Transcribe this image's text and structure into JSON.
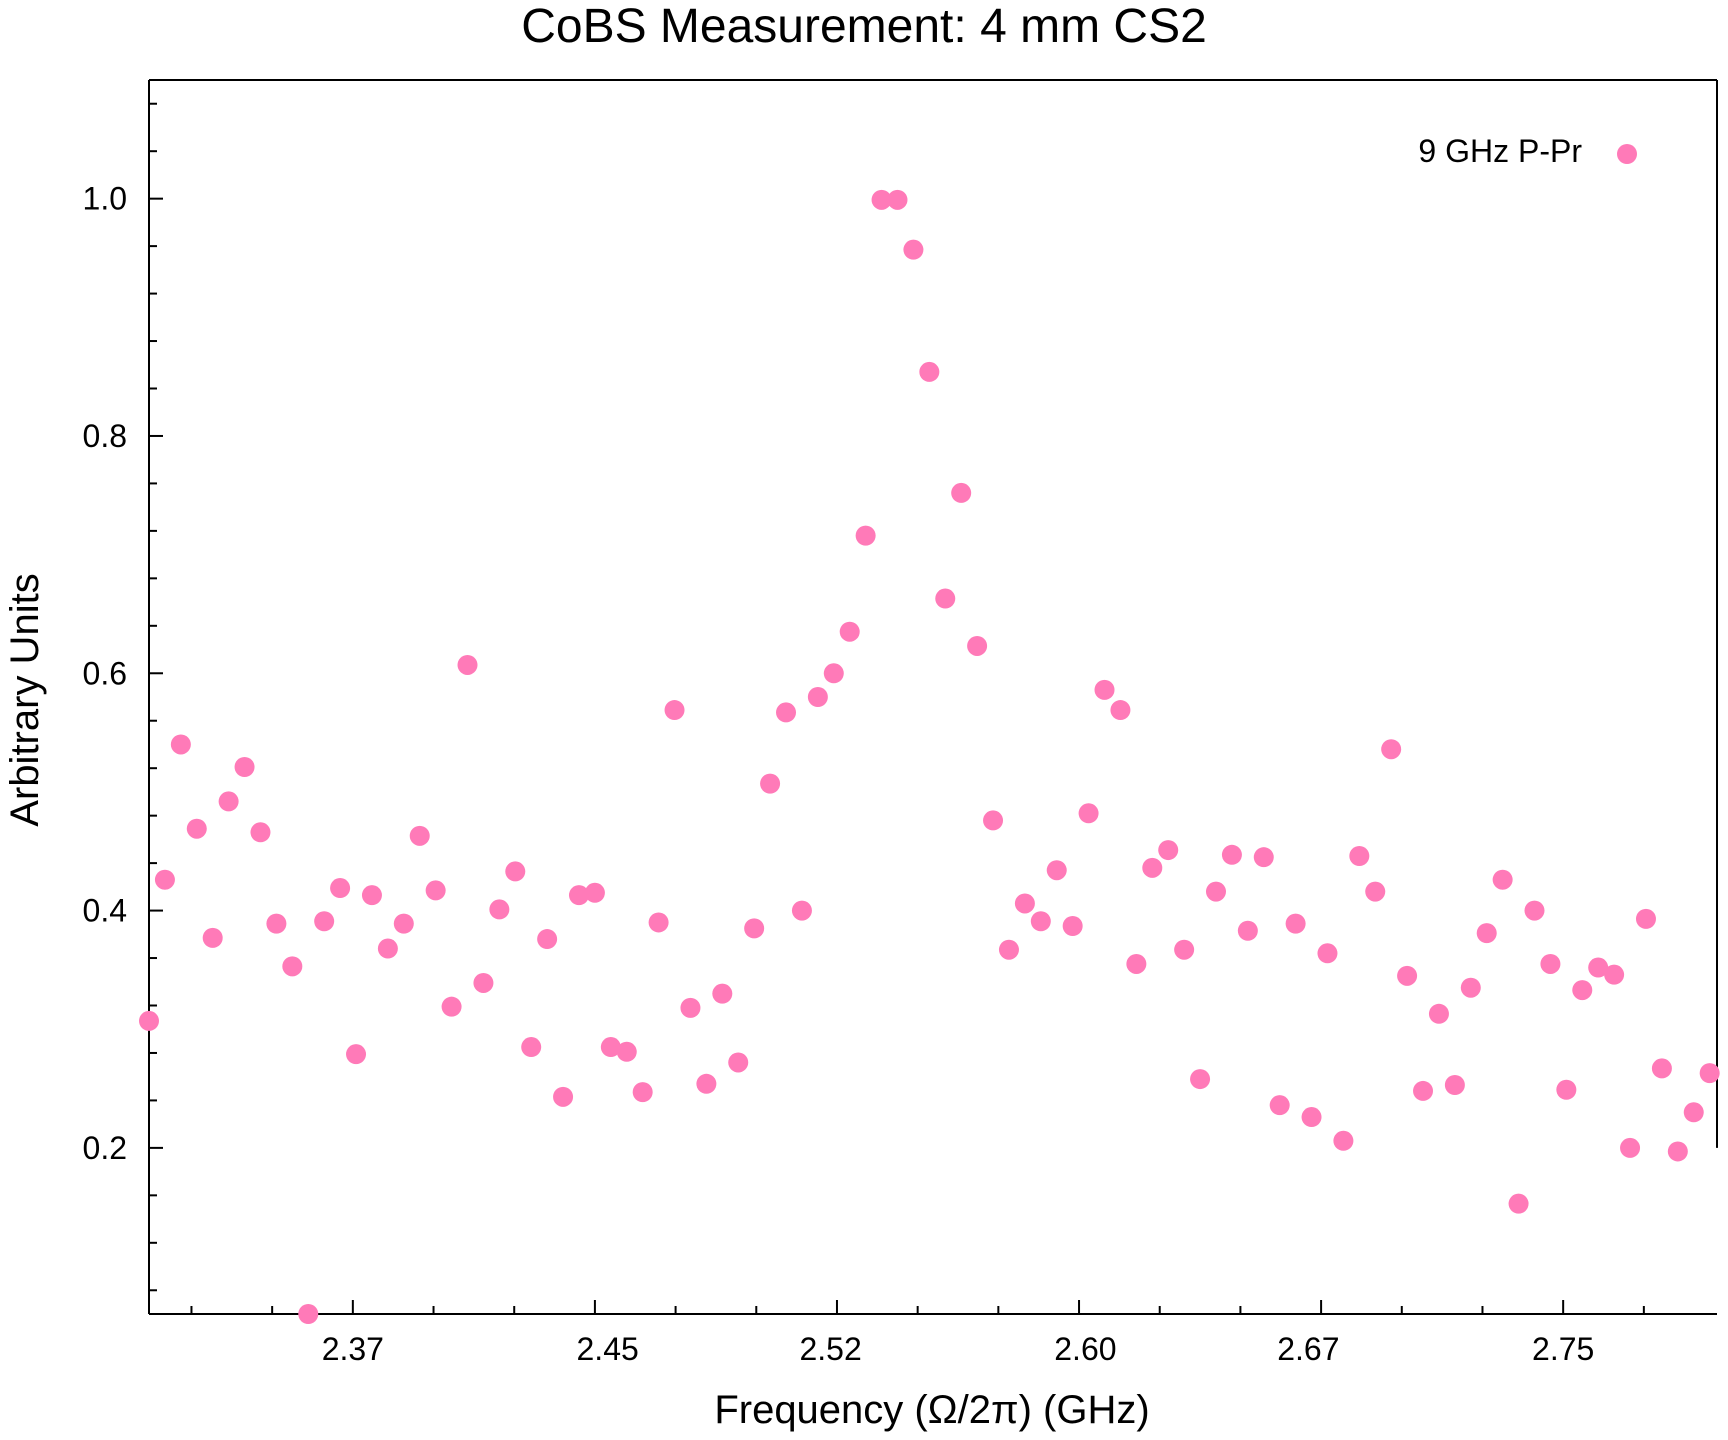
{
  "chart_data": {
    "type": "scatter",
    "title": "CoBS Measurement: 4 mm CS2",
    "xlabel": "Frequency (Ω/2π) (GHz)",
    "ylabel": "Arbitrary Units",
    "xlim": [
      2.306,
      2.7983
    ],
    "ylim": [
      0.06,
      1.1
    ],
    "xticks": [
      2.37,
      2.45,
      2.52,
      2.6,
      2.67,
      2.75
    ],
    "xtick_labels": [
      "2.37",
      "2.45",
      "2.52",
      "2.60",
      "2.67",
      "2.75"
    ],
    "yticks": [
      0.2,
      0.4,
      0.6,
      0.8,
      1.0
    ],
    "ytick_labels": [
      "0.2",
      "0.4",
      "0.6",
      "0.8",
      "1.0"
    ],
    "grid": false,
    "legend_position": "top-right",
    "series": [
      {
        "name": "9 GHz P-Pr",
        "color": "#ff7ab8",
        "x": [
          2.306,
          2.311,
          2.316,
          2.321,
          2.326,
          2.331,
          2.336,
          2.341,
          2.346,
          2.351,
          2.356,
          2.361,
          2.366,
          2.371,
          2.376,
          2.381,
          2.386,
          2.391,
          2.396,
          2.401,
          2.406,
          2.411,
          2.416,
          2.421,
          2.426,
          2.431,
          2.436,
          2.441,
          2.446,
          2.451,
          2.456,
          2.461,
          2.466,
          2.471,
          2.476,
          2.481,
          2.486,
          2.491,
          2.496,
          2.501,
          2.506,
          2.511,
          2.516,
          2.521,
          2.526,
          2.531,
          2.536,
          2.541,
          2.546,
          2.551,
          2.556,
          2.561,
          2.566,
          2.571,
          2.576,
          2.581,
          2.586,
          2.591,
          2.596,
          2.601,
          2.606,
          2.611,
          2.616,
          2.621,
          2.626,
          2.631,
          2.636,
          2.641,
          2.646,
          2.651,
          2.656,
          2.661,
          2.666,
          2.671,
          2.676,
          2.681,
          2.686,
          2.691,
          2.696,
          2.701,
          2.706,
          2.711,
          2.716,
          2.721,
          2.726,
          2.731,
          2.736,
          2.741,
          2.746,
          2.751,
          2.756,
          2.761,
          2.766,
          2.771,
          2.776,
          2.781,
          2.786,
          2.791,
          2.796
        ],
        "y": [
          0.307,
          0.426,
          0.54,
          0.469,
          0.377,
          0.492,
          0.521,
          0.466,
          0.389,
          0.353,
          0.06,
          0.391,
          0.419,
          0.279,
          0.413,
          0.368,
          0.389,
          0.463,
          0.417,
          0.319,
          0.607,
          0.339,
          0.401,
          0.433,
          0.285,
          0.376,
          0.243,
          0.413,
          0.415,
          0.285,
          0.281,
          0.247,
          0.39,
          0.569,
          0.318,
          0.254,
          0.33,
          0.272,
          0.385,
          0.507,
          0.567,
          0.4,
          0.58,
          0.6,
          0.635,
          0.716,
          0.999,
          0.999,
          0.957,
          0.854,
          0.663,
          0.752,
          0.623,
          0.476,
          0.367,
          0.406,
          0.391,
          0.434,
          0.387,
          0.482,
          0.586,
          0.569,
          0.355,
          0.436,
          0.451,
          0.367,
          0.258,
          0.416,
          0.447,
          0.383,
          0.445,
          0.236,
          0.389,
          0.226,
          0.364,
          0.206,
          0.446,
          0.416,
          0.536,
          0.345,
          0.248,
          0.313,
          0.253,
          0.335,
          0.381,
          0.426,
          0.153,
          0.4,
          0.355,
          0.249,
          0.333,
          0.352,
          0.346,
          0.2,
          0.393,
          0.267,
          0.197,
          0.23,
          0.263
        ]
      }
    ]
  }
}
